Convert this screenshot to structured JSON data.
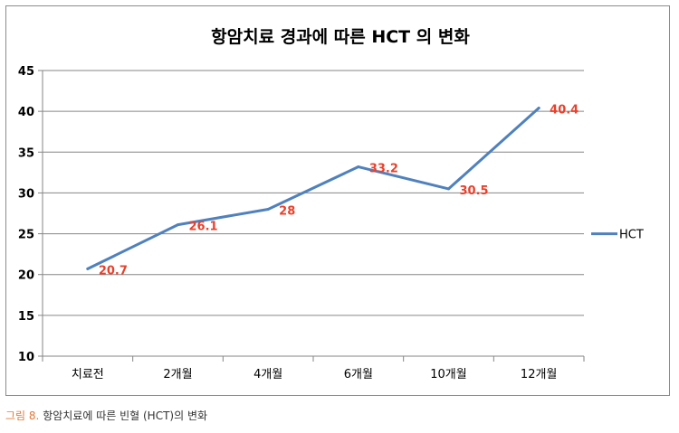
{
  "chart_data": {
    "type": "line",
    "title": "항암치료 경과에 따른 HCT 의 변화",
    "categories": [
      "치료전",
      "2개월",
      "4개월",
      "6개월",
      "10개월",
      "12개월"
    ],
    "series": [
      {
        "name": "HCT",
        "values": [
          20.7,
          26.1,
          28,
          33.2,
          30.5,
          40.4
        ],
        "color": "#4f81bd"
      }
    ],
    "data_labels": [
      "20.7",
      "26.1",
      "28",
      "33.2",
      "30.5",
      "40.4"
    ],
    "data_label_color": "#e8412c",
    "ylim": [
      10,
      45
    ],
    "yticks": [
      10,
      15,
      20,
      25,
      30,
      35,
      40,
      45
    ],
    "ytick_labels": [
      "10",
      "15",
      "20",
      "25",
      "30",
      "35",
      "40",
      "45"
    ],
    "grid": true,
    "legend": {
      "position": "right",
      "entries": [
        "HCT"
      ]
    },
    "xlabel": "",
    "ylabel": ""
  },
  "caption": {
    "prefix": "그림 8.",
    "text": "항암치료에 따른 빈혈 (HCT)의 변화"
  }
}
